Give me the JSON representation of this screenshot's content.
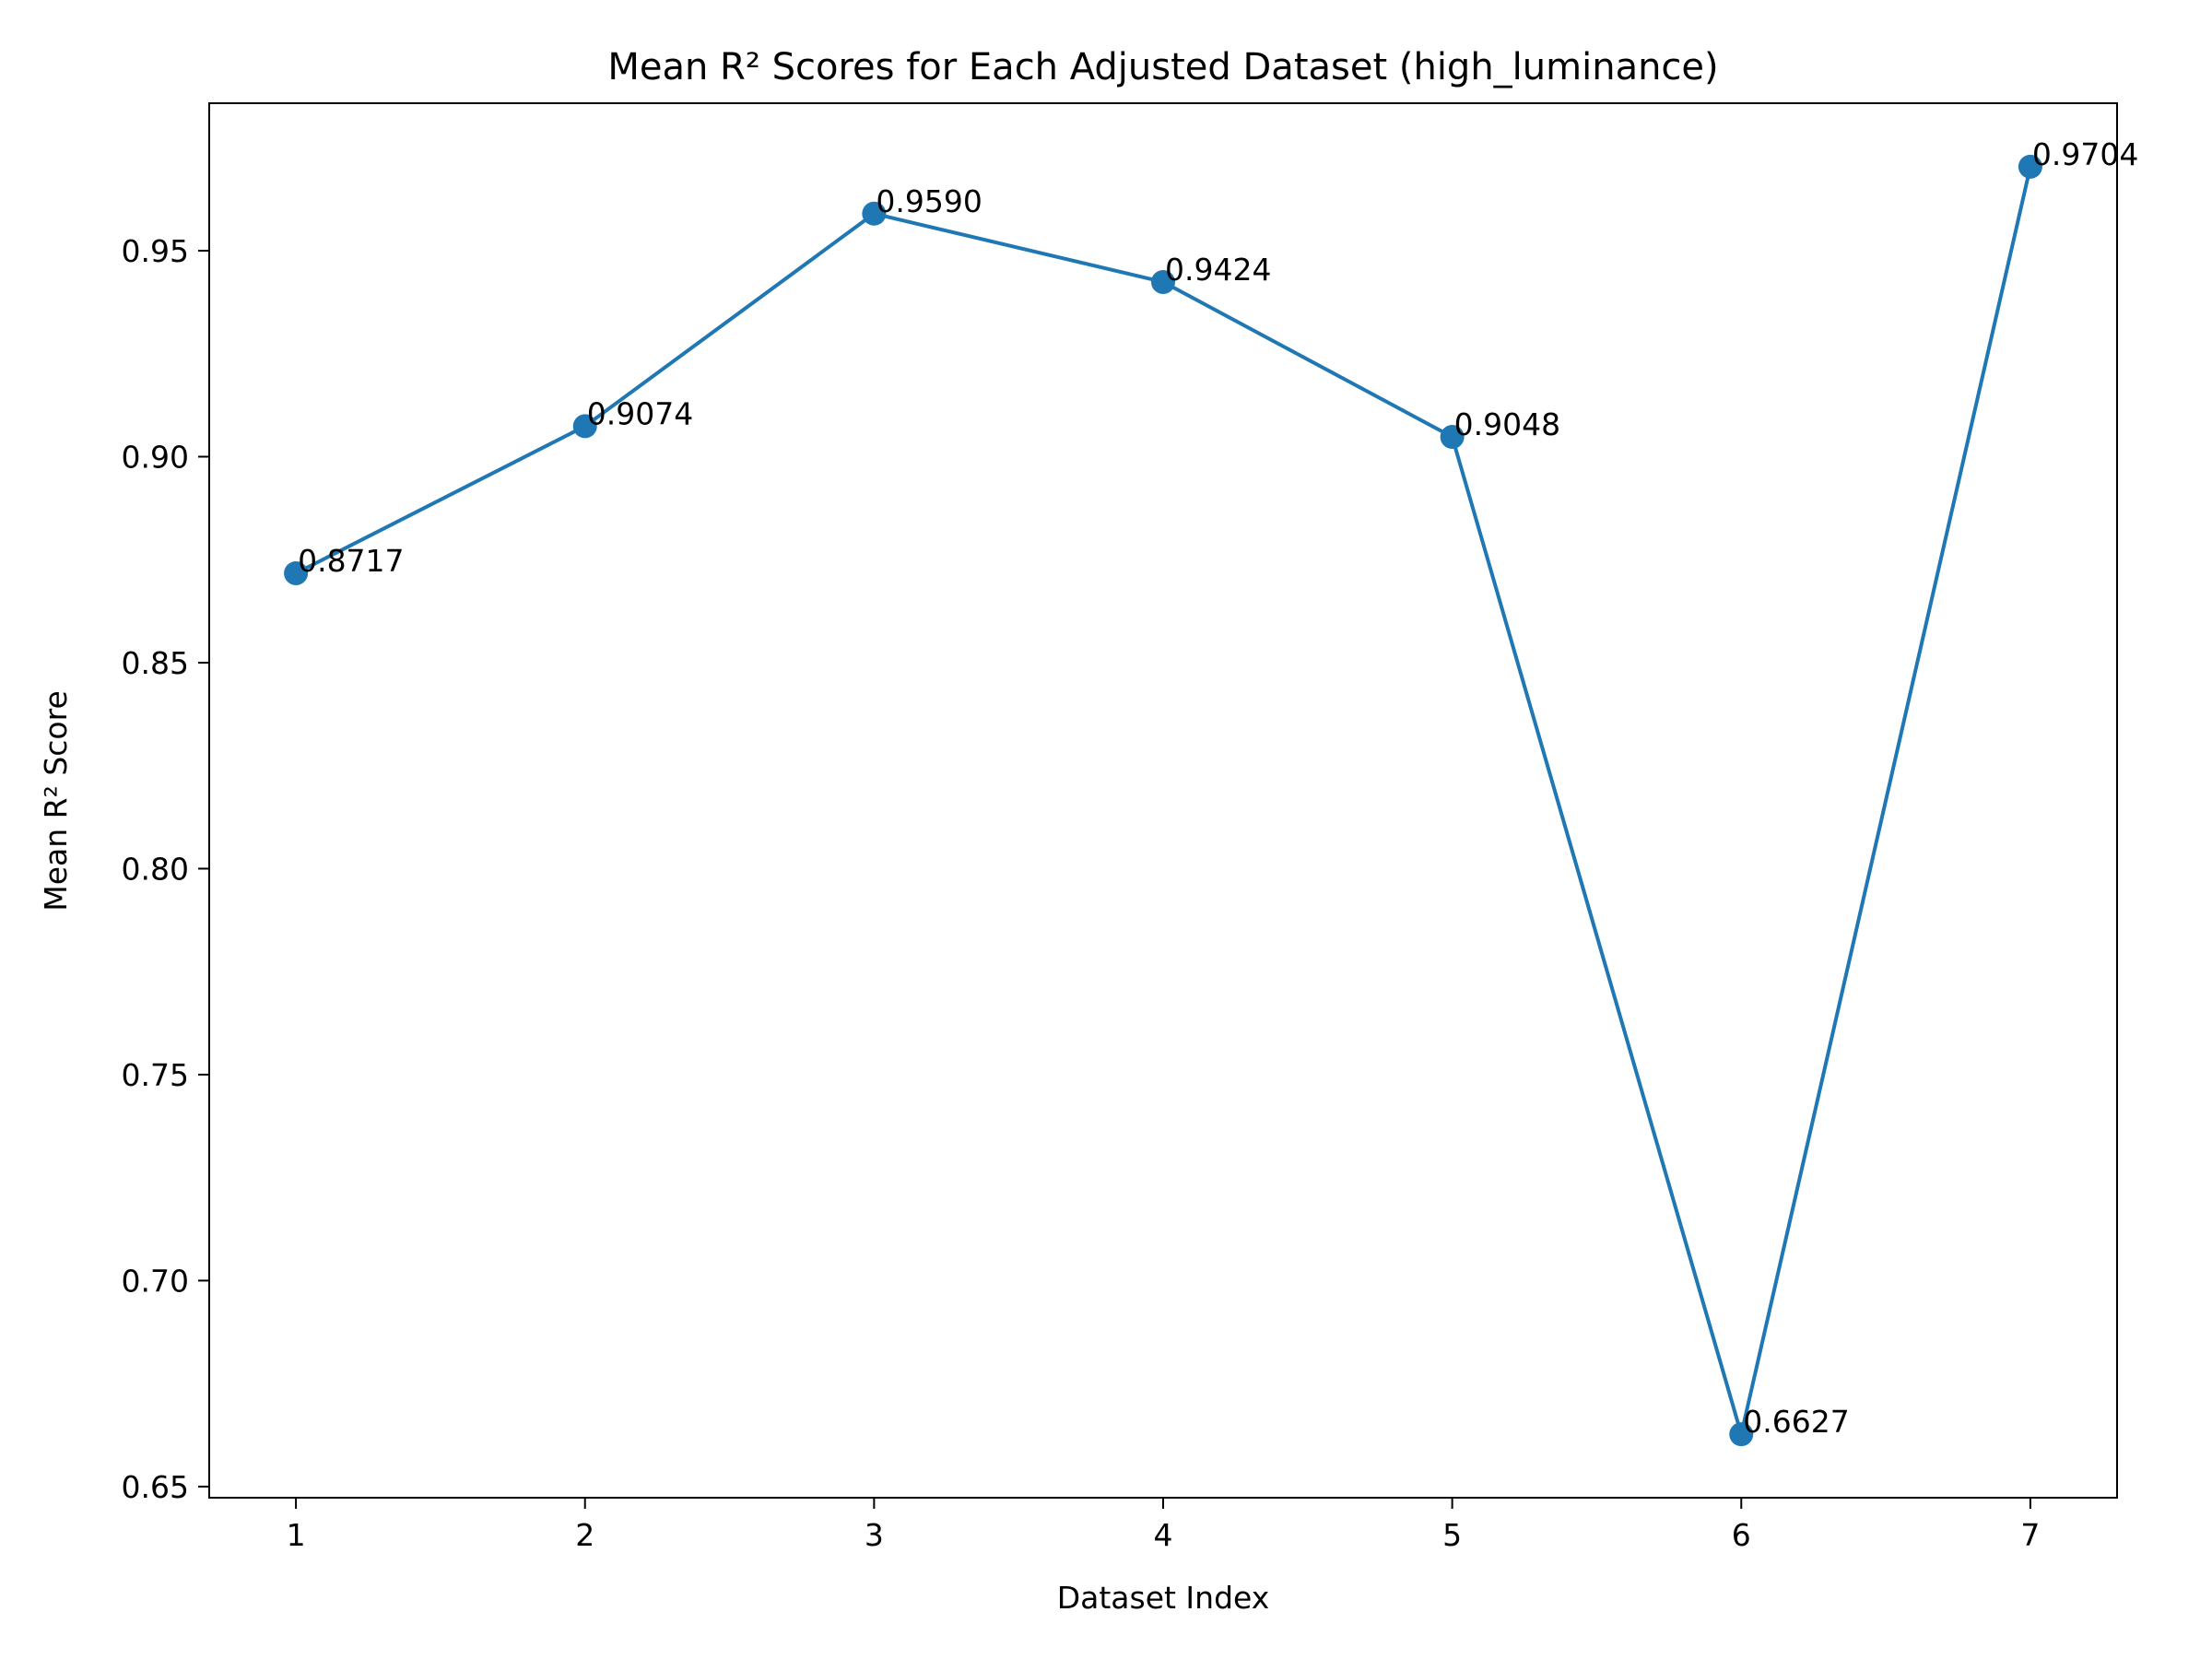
{
  "chart_data": {
    "type": "line",
    "title": "Mean R² Scores for Each Adjusted Dataset (high_luminance)",
    "xlabel": "Dataset Index",
    "ylabel": "Mean R² Score",
    "x": [
      1,
      2,
      3,
      4,
      5,
      6,
      7
    ],
    "values": [
      0.8717,
      0.9074,
      0.959,
      0.9424,
      0.9048,
      0.6627,
      0.9704
    ],
    "data_labels": [
      "0.8717",
      "0.9074",
      "0.9590",
      "0.9424",
      "0.9048",
      "0.6627",
      "0.9704"
    ],
    "xticks": [
      "1",
      "2",
      "3",
      "4",
      "5",
      "6",
      "7"
    ],
    "yticks": [
      "0.65",
      "0.70",
      "0.75",
      "0.80",
      "0.85",
      "0.90",
      "0.95"
    ],
    "ytick_values": [
      0.65,
      0.7,
      0.75,
      0.8,
      0.85,
      0.9,
      0.95
    ],
    "xlim": [
      0.7,
      7.3
    ],
    "ylim": [
      0.6473,
      0.9858
    ],
    "grid": false,
    "line_color": "#1f77b4",
    "marker": "circle"
  }
}
